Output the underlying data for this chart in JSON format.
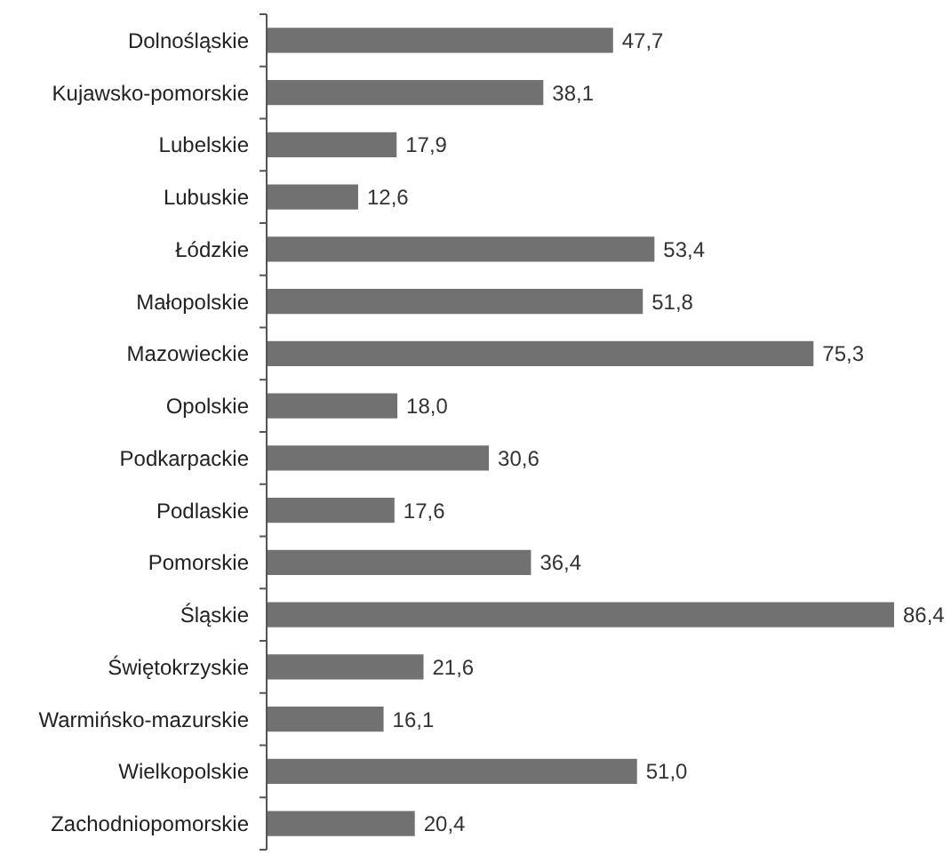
{
  "chart_data": {
    "type": "bar",
    "orientation": "horizontal",
    "categories": [
      "Dolnośląskie",
      "Kujawsko-pomorskie",
      "Lubelskie",
      "Lubuskie",
      "Łódzkie",
      "Małopolskie",
      "Mazowieckie",
      "Opolskie",
      "Podkarpackie",
      "Podlaskie",
      "Pomorskie",
      "Śląskie",
      "Świętokrzyskie",
      "Warmińsko-mazurskie",
      "Wielkopolskie",
      "Zachodniopomorskie"
    ],
    "values": [
      47.7,
      38.1,
      17.9,
      12.6,
      53.4,
      51.8,
      75.3,
      18.0,
      30.6,
      17.6,
      36.4,
      86.4,
      21.6,
      16.1,
      51.0,
      20.4
    ],
    "value_labels": [
      "47,7",
      "38,1",
      "17,9",
      "12,6",
      "53,4",
      "51,8",
      "75,3",
      "18,0",
      "30,6",
      "17,6",
      "36,4",
      "86,4",
      "21,6",
      "16,1",
      "51,0",
      "20,4"
    ],
    "color": "#717171"
  }
}
